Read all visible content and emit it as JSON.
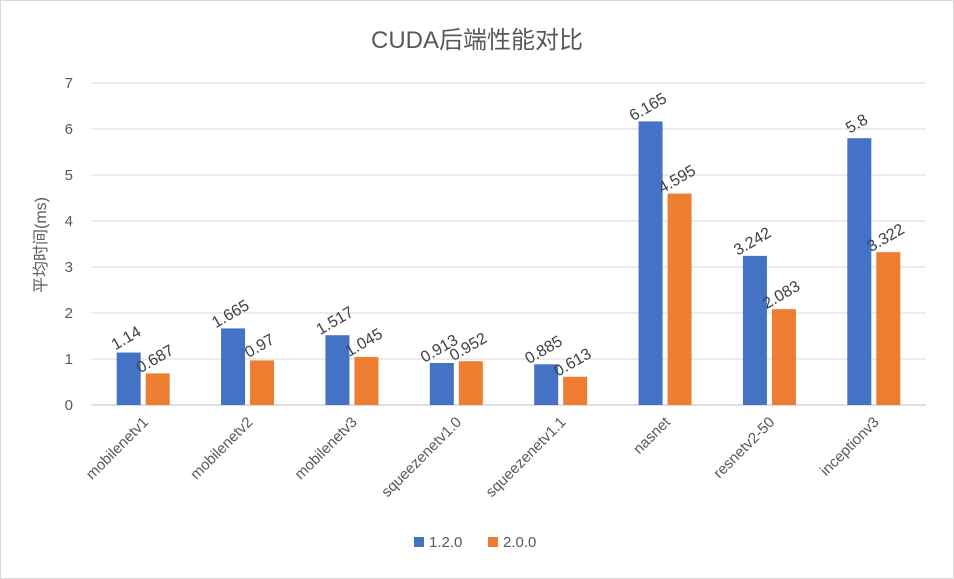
{
  "chart_data": {
    "type": "bar",
    "title": "CUDA后端性能对比",
    "xlabel": "",
    "ylabel": "平均时间(ms)",
    "ylim": [
      0,
      7
    ],
    "yticks": [
      "0",
      "1",
      "2",
      "3",
      "4",
      "5",
      "6",
      "7"
    ],
    "grid": true,
    "legend": "bottom",
    "categories": [
      "mobilenetv1",
      "mobilenetv2",
      "mobilenetv3",
      "squeezenetv1.0",
      "squeezenetv1.1",
      "nasnet",
      "resnetv2-50",
      "inceptionv3"
    ],
    "series": [
      {
        "name": "1.2.0",
        "color": "#4472c4",
        "values": [
          1.14,
          1.665,
          1.517,
          0.913,
          0.885,
          6.165,
          3.242,
          5.8
        ],
        "labels": [
          "1.14",
          "1.665",
          "1.517",
          "0.913",
          "0.885",
          "6.165",
          "3.242",
          "5.8"
        ]
      },
      {
        "name": "2.0.0",
        "color": "#ed7d31",
        "values": [
          0.687,
          0.97,
          1.045,
          0.952,
          0.613,
          4.595,
          2.083,
          3.322
        ],
        "labels": [
          "0.687",
          "0.97",
          "1.045",
          "0.952",
          "0.613",
          "4.595",
          "2.083",
          "3.322"
        ]
      }
    ]
  }
}
